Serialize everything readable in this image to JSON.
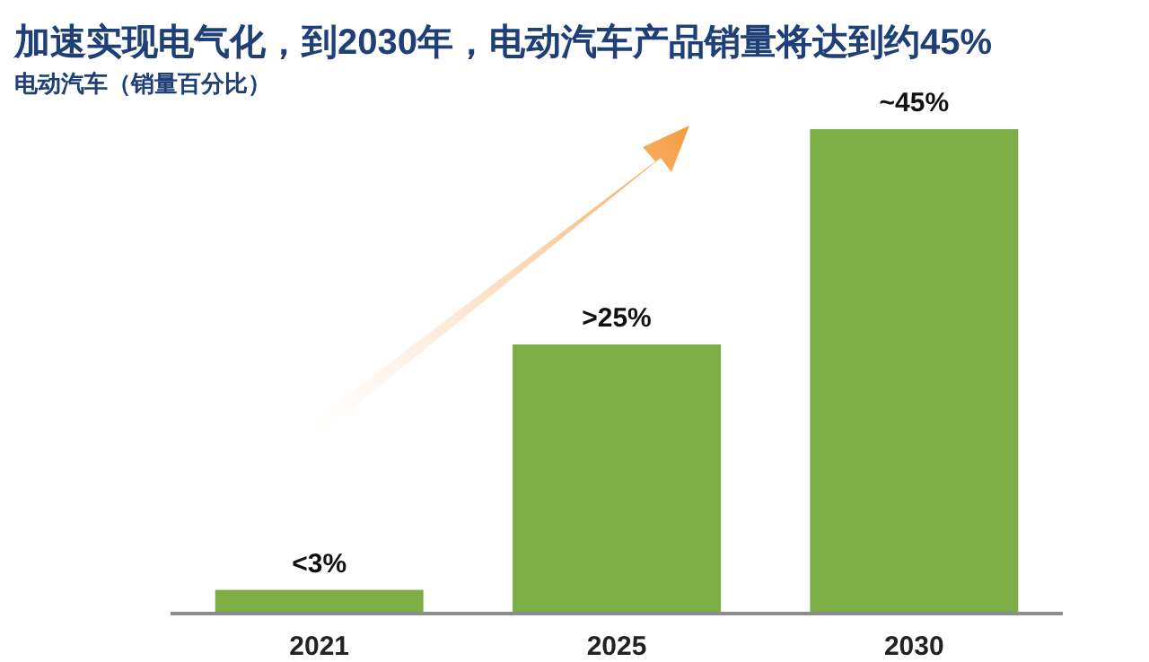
{
  "chart_data": {
    "type": "bar",
    "title": "加速实现电气化，到2030年，电动汽车产品销量将达到约45%",
    "subtitle": "电动汽车（销量百分比）",
    "categories": [
      "2021",
      "2025",
      "2030"
    ],
    "values": [
      2.2,
      25,
      45
    ],
    "value_labels": [
      "<3%",
      ">25%",
      "~45%"
    ],
    "color": "#7dad45"
  }
}
